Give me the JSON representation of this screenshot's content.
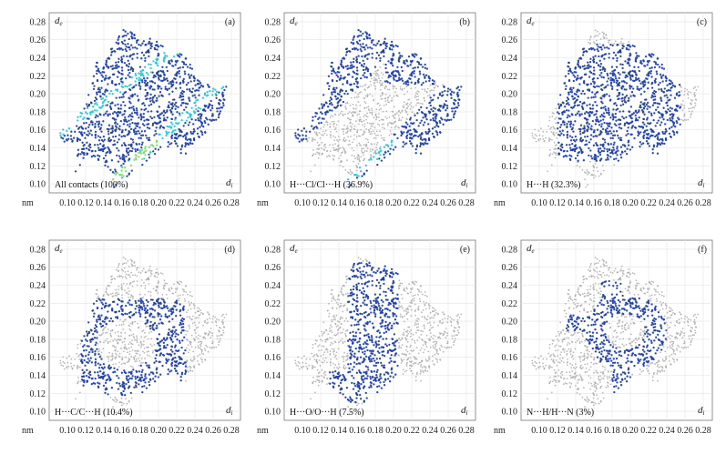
{
  "figure": {
    "x_unit_label": "nm"
  },
  "colors": {
    "gray": "#a8a8a8",
    "blue": "#1e3fa6",
    "cyan": "#29c6d9",
    "green": "#7ddc6a"
  },
  "chart_data": [
    {
      "type": "scatter",
      "panel_label": "(a)",
      "contact_label": "All contacts (100%)",
      "ylabel": "de",
      "xlabel": "di",
      "x_ticks": [
        "0.10",
        "0.12",
        "0.14",
        "0.16",
        "0.18",
        "0.20",
        "0.22",
        "0.24",
        "0.26",
        "0.28"
      ],
      "y_ticks": [
        "0.10",
        "0.12",
        "0.14",
        "0.16",
        "0.18",
        "0.20",
        "0.22",
        "0.24",
        "0.26",
        "0.28"
      ],
      "xlim": [
        0.08,
        0.29
      ],
      "ylim": [
        0.09,
        0.29
      ],
      "highlight": "all",
      "grid": true
    },
    {
      "type": "scatter",
      "panel_label": "(b)",
      "contact_label": "H···Cl/Cl···H (36.9%)",
      "ylabel": "de",
      "xlabel": "di",
      "x_ticks": [
        "0.10",
        "0.12",
        "0.14",
        "0.16",
        "0.18",
        "0.20",
        "0.22",
        "0.24",
        "0.26",
        "0.28"
      ],
      "y_ticks": [
        "0.10",
        "0.12",
        "0.14",
        "0.16",
        "0.18",
        "0.20",
        "0.22",
        "0.24",
        "0.26",
        "0.28"
      ],
      "xlim": [
        0.08,
        0.29
      ],
      "ylim": [
        0.09,
        0.29
      ],
      "highlight": "wings",
      "grid": true
    },
    {
      "type": "scatter",
      "panel_label": "(c)",
      "contact_label": "H···H (32.3%)",
      "ylabel": "de",
      "xlabel": "di",
      "x_ticks": [
        "0.10",
        "0.12",
        "0.14",
        "0.16",
        "0.18",
        "0.20",
        "0.22",
        "0.24",
        "0.26",
        "0.28"
      ],
      "y_ticks": [
        "0.10",
        "0.12",
        "0.14",
        "0.16",
        "0.18",
        "0.20",
        "0.22",
        "0.24",
        "0.26",
        "0.28"
      ],
      "xlim": [
        0.08,
        0.29
      ],
      "ylim": [
        0.09,
        0.29
      ],
      "highlight": "center",
      "grid": true
    },
    {
      "type": "scatter",
      "panel_label": "(d)",
      "contact_label": "H···C/C···H (10.4%)",
      "ylabel": "de",
      "xlabel": "di",
      "x_ticks": [
        "0.10",
        "0.12",
        "0.14",
        "0.16",
        "0.18",
        "0.20",
        "0.22",
        "0.24",
        "0.26",
        "0.28"
      ],
      "y_ticks": [
        "0.10",
        "0.12",
        "0.14",
        "0.16",
        "0.18",
        "0.20",
        "0.22",
        "0.24",
        "0.26",
        "0.28"
      ],
      "xlim": [
        0.08,
        0.29
      ],
      "ylim": [
        0.09,
        0.29
      ],
      "highlight": "arch",
      "grid": true
    },
    {
      "type": "scatter",
      "panel_label": "(e)",
      "contact_label": "H···O/O···H (7.5%)",
      "ylabel": "de",
      "xlabel": "di",
      "x_ticks": [
        "0.10",
        "0.12",
        "0.14",
        "0.16",
        "0.18",
        "0.20",
        "0.22",
        "0.24",
        "0.26",
        "0.28"
      ],
      "y_ticks": [
        "0.10",
        "0.12",
        "0.14",
        "0.16",
        "0.18",
        "0.20",
        "0.22",
        "0.24",
        "0.26",
        "0.28"
      ],
      "xlim": [
        0.08,
        0.29
      ],
      "ylim": [
        0.09,
        0.29
      ],
      "highlight": "vertical",
      "grid": true
    },
    {
      "type": "scatter",
      "panel_label": "(f)",
      "contact_label": "N···H/H···N (3%)",
      "ylabel": "de",
      "xlabel": "di",
      "x_ticks": [
        "0.10",
        "0.12",
        "0.14",
        "0.16",
        "0.18",
        "0.20",
        "0.22",
        "0.24",
        "0.26",
        "0.28"
      ],
      "y_ticks": [
        "0.10",
        "0.12",
        "0.14",
        "0.16",
        "0.18",
        "0.20",
        "0.22",
        "0.24",
        "0.26",
        "0.28"
      ],
      "xlim": [
        0.08,
        0.29
      ],
      "ylim": [
        0.09,
        0.29
      ],
      "highlight": "loop",
      "grid": true
    }
  ]
}
